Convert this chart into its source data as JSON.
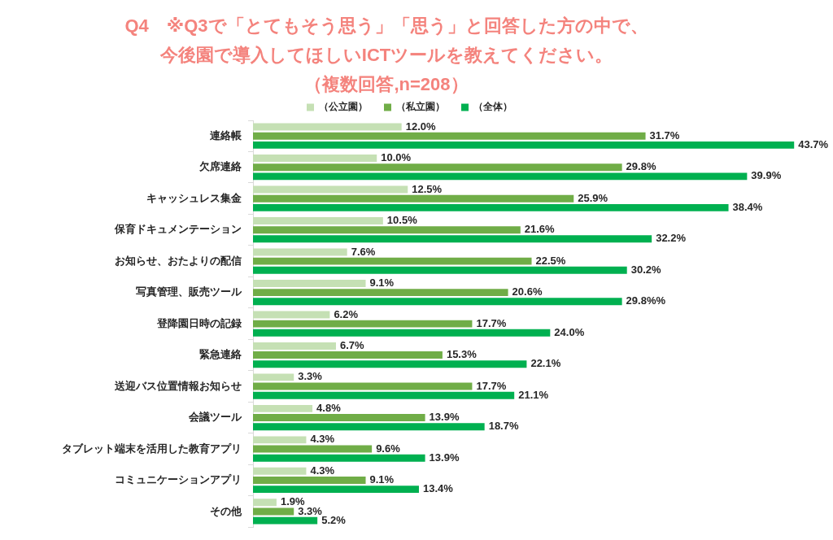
{
  "chart_data": {
    "type": "bar",
    "orientation": "horizontal",
    "legend": "top",
    "tick_labels": "y",
    "title": "Q4　※Q3で「とてもそう思う」「思う」と回答した方の中で、今後園で導入してほしいICTツールを教えてください。",
    "subtitle": "（複数回答,n=208）",
    "categories": [
      "連絡帳",
      "欠席連絡",
      "キャッシュレス集金",
      "保育ドキュメンテーション",
      "お知らせ、おたよりの配信",
      "写真管理、販売ツール",
      "登降園日時の記録",
      "緊急連絡",
      "送迎バス位置情報お知らせ",
      "会議ツール",
      "タブレット端末を活用した教育アプリ",
      "コミュニケーションアプリ",
      "その他"
    ],
    "series": [
      {
        "name": "（公立園）",
        "color": "#c5e0b4",
        "values": [
          12.0,
          10.0,
          12.5,
          10.5,
          7.6,
          9.1,
          6.2,
          6.7,
          3.3,
          4.8,
          4.3,
          4.3,
          1.9
        ],
        "value_labels": [
          "12.0%",
          "10.0%",
          "12.5%",
          "10.5%",
          "7.6%",
          "9.1%",
          "6.2%",
          "6.7%",
          "3.3%",
          "4.8%",
          "4.3%",
          "4.3%",
          "1.9%"
        ]
      },
      {
        "name": "（私立園）",
        "color": "#70ad47",
        "values": [
          31.7,
          29.8,
          25.9,
          21.6,
          22.5,
          20.6,
          17.7,
          15.3,
          17.7,
          13.9,
          9.6,
          9.1,
          3.3
        ],
        "value_labels": [
          "31.7%",
          "29.8%",
          "25.9%",
          "21.6%",
          "22.5%",
          "20.6%",
          "17.7%",
          "15.3%",
          "17.7%",
          "13.9%",
          "9.6%",
          "9.1%",
          "3.3%"
        ]
      },
      {
        "name": "（全体）",
        "color": "#00b050",
        "values": [
          43.7,
          39.9,
          38.4,
          32.2,
          30.2,
          29.8,
          24.0,
          22.1,
          21.1,
          18.7,
          13.9,
          13.4,
          5.2
        ],
        "value_labels": [
          "43.7%",
          "39.9%",
          "38.4%",
          "32.2%",
          "30.2%",
          "29.8%%",
          "24.0%",
          "22.1%",
          "21.1%",
          "18.7%",
          "13.9%",
          "13.4%",
          "5.2%"
        ]
      }
    ]
  }
}
